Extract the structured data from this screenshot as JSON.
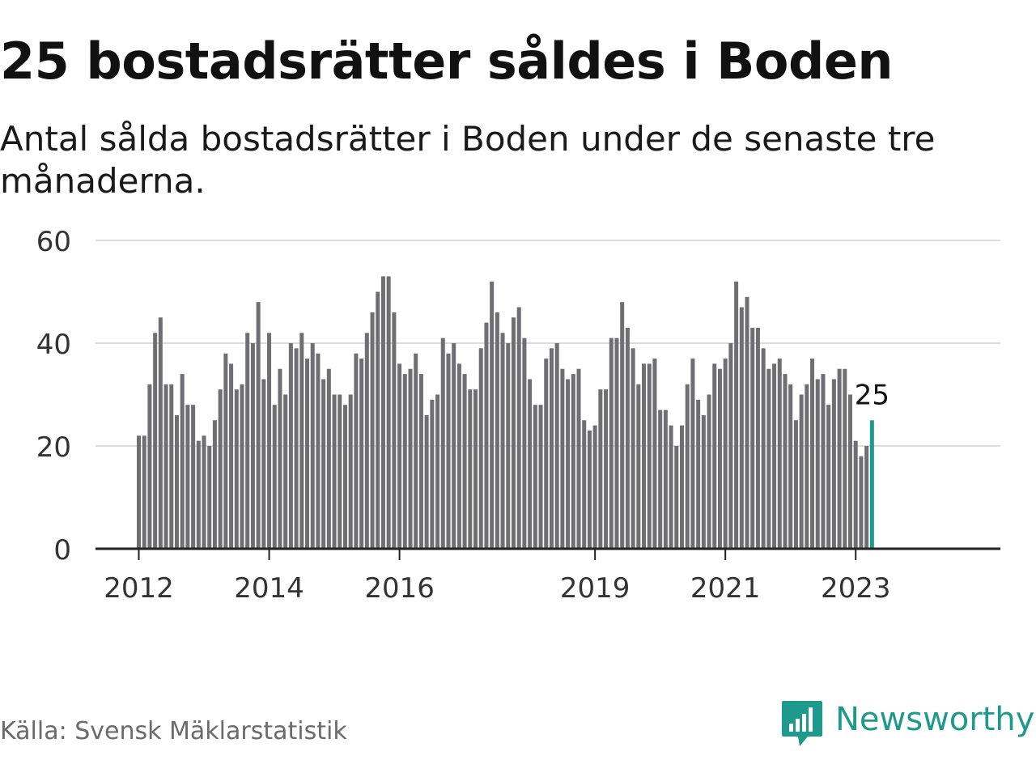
{
  "title": "25 bostadsrätter såldes i Boden",
  "subtitle": "Antal sålda bostadsrätter i Boden under de senaste tre månaderna.",
  "source": "Källa: Svensk Mäklarstatistik",
  "logo": {
    "text": "Newsworthy",
    "icon": "newsworthy-chat-bar-icon"
  },
  "colors": {
    "bar": "#6e6e73",
    "highlight": "#1e9a8c",
    "grid": "#dcdcdc",
    "axis": "#222222",
    "logo": "#1e9a8c"
  },
  "chart_data": {
    "type": "bar",
    "title": "25 bostadsrätter såldes i Boden",
    "xlabel": "",
    "ylabel": "",
    "ylim": [
      0,
      60
    ],
    "yticks": [
      "0",
      "20",
      "40",
      "60"
    ],
    "grid": true,
    "x_start": "2012-01",
    "xticks": [
      {
        "label": "2012",
        "date": "2012-01"
      },
      {
        "label": "2014",
        "date": "2014-01"
      },
      {
        "label": "2016",
        "date": "2016-01"
      },
      {
        "label": "2019",
        "date": "2019-01"
      },
      {
        "label": "2021",
        "date": "2021-01"
      },
      {
        "label": "2023",
        "date": "2023-01"
      }
    ],
    "values": [
      22,
      22,
      32,
      42,
      45,
      32,
      32,
      26,
      34,
      28,
      28,
      21,
      22,
      20,
      25,
      31,
      38,
      36,
      31,
      32,
      42,
      40,
      48,
      33,
      42,
      28,
      35,
      30,
      40,
      39,
      42,
      37,
      40,
      38,
      33,
      35,
      30,
      30,
      28,
      30,
      38,
      37,
      42,
      46,
      50,
      53,
      53,
      46,
      36,
      34,
      35,
      38,
      34,
      26,
      29,
      30,
      41,
      38,
      40,
      36,
      34,
      31,
      31,
      39,
      44,
      52,
      46,
      42,
      40,
      45,
      47,
      41,
      33,
      28,
      28,
      37,
      39,
      40,
      35,
      33,
      34,
      35,
      25,
      23,
      24,
      31,
      31,
      41,
      41,
      48,
      43,
      39,
      32,
      36,
      36,
      37,
      27,
      27,
      24,
      20,
      24,
      32,
      37,
      29,
      26,
      30,
      36,
      35,
      37,
      40,
      52,
      47,
      49,
      43,
      43,
      39,
      35,
      36,
      37,
      34,
      32,
      25,
      30,
      32,
      37,
      33,
      34,
      28,
      33,
      35,
      35,
      30,
      21,
      18,
      20,
      25
    ],
    "highlight_last": 1,
    "highlight_label": "25"
  }
}
